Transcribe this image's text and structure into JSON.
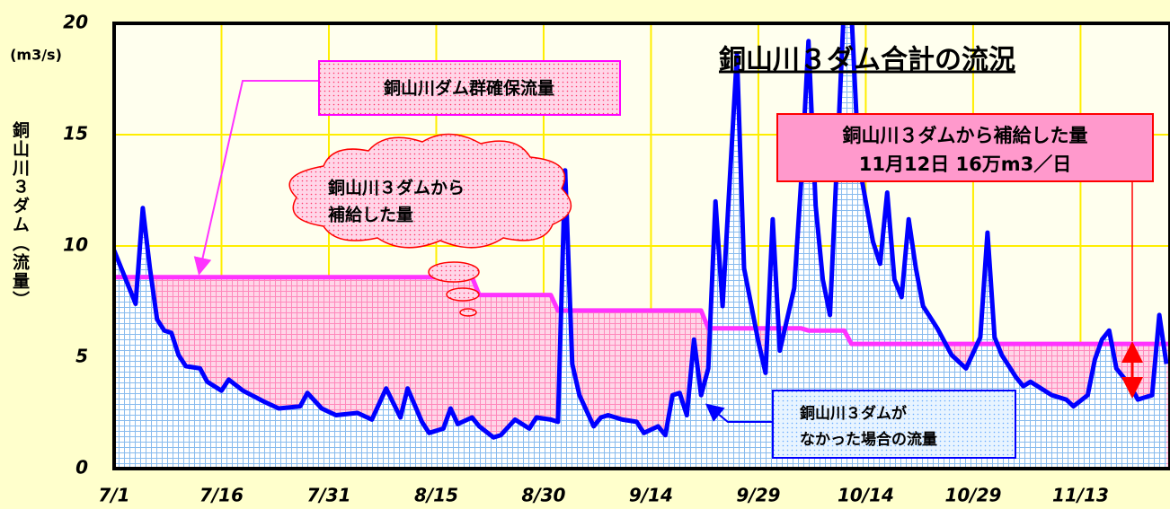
{
  "chart_data": {
    "type": "line",
    "title": "銅山川３ダム合計の流況",
    "y_unit": "(m3/s)",
    "y_label": "銅山川３ダム（流量）",
    "xlim": [
      0,
      147.5
    ],
    "xticks": [
      {
        "value": 0,
        "label": "7/1"
      },
      {
        "value": 15,
        "label": "7/16"
      },
      {
        "value": 30,
        "label": "7/31"
      },
      {
        "value": 45,
        "label": "8/15"
      },
      {
        "value": 60,
        "label": "8/30"
      },
      {
        "value": 75,
        "label": "9/14"
      },
      {
        "value": 90,
        "label": "9/29"
      },
      {
        "value": 105,
        "label": "10/14"
      },
      {
        "value": 120,
        "label": "10/29"
      },
      {
        "value": 135,
        "label": "11/13"
      }
    ],
    "ylim": [
      0,
      20
    ],
    "yticks": [
      0,
      5,
      10,
      15,
      20
    ],
    "grid": true,
    "series": [
      {
        "name": "銅山川ダム群確保流量",
        "color": "#ff33ff",
        "fill": "#ff99cc",
        "x": [
          0,
          50,
          51,
          61,
          62,
          82,
          83,
          96,
          97,
          102,
          103,
          147.5
        ],
        "values": [
          8.6,
          8.6,
          7.8,
          7.8,
          7.1,
          7.1,
          6.3,
          6.3,
          6.2,
          6.2,
          5.6,
          5.6
        ]
      },
      {
        "color": "#0000ff",
        "fill": "#99ccff",
        "x": [
          0,
          2,
          3,
          4,
          5,
          6,
          7,
          8,
          9,
          10,
          12,
          13,
          15,
          16,
          18,
          21,
          23,
          26,
          27,
          29,
          31,
          34,
          36,
          38,
          40,
          41,
          43,
          44,
          46,
          47,
          48,
          50,
          51,
          53,
          54,
          56,
          58,
          59,
          61,
          62,
          63,
          64,
          65,
          67,
          68,
          69,
          71,
          73,
          74,
          76,
          77,
          78,
          79,
          80,
          81,
          82,
          83,
          84,
          85,
          87,
          88,
          90,
          91,
          92,
          93,
          95,
          96,
          97,
          98,
          99,
          100,
          102,
          103,
          104,
          106,
          107,
          108,
          109,
          110,
          111,
          112,
          113,
          115,
          117,
          119,
          121,
          122,
          123,
          124,
          126,
          127,
          128,
          130,
          131,
          133,
          134,
          136,
          137,
          138,
          139,
          140,
          142,
          143,
          145,
          146,
          147
        ],
        "values": [
          9.8,
          8.2,
          7.4,
          11.7,
          9.0,
          6.7,
          6.2,
          6.1,
          5.1,
          4.6,
          4.5,
          3.9,
          3.5,
          4.0,
          3.5,
          3.0,
          2.7,
          2.8,
          3.4,
          2.7,
          2.4,
          2.5,
          2.2,
          3.6,
          2.3,
          3.6,
          2.1,
          1.6,
          1.8,
          2.7,
          2.0,
          2.3,
          1.9,
          1.4,
          1.5,
          2.2,
          1.8,
          2.3,
          2.2,
          2.1,
          13.4,
          4.7,
          3.3,
          1.9,
          2.3,
          2.4,
          2.2,
          2.1,
          1.6,
          1.9,
          1.5,
          3.3,
          3.4,
          2.4,
          5.8,
          3.3,
          4.5,
          12.0,
          7.3,
          18.6,
          9.0,
          5.7,
          4.3,
          11.2,
          5.3,
          8.1,
          13.0,
          19.2,
          11.8,
          8.5,
          6.9,
          21.0,
          20.5,
          13.8,
          10.2,
          9.2,
          12.4,
          8.5,
          7.7,
          11.2,
          9.0,
          7.3,
          6.3,
          5.1,
          4.5,
          5.9,
          10.6,
          5.9,
          5.1,
          4.1,
          3.7,
          3.9,
          3.5,
          3.3,
          3.1,
          2.8,
          3.3,
          4.9,
          5.8,
          6.2,
          4.5,
          3.7,
          3.1,
          3.3,
          6.9,
          4.7
        ]
      }
    ],
    "annotations": [
      {
        "lines": [
          "銅山川３ダムから",
          "補給した量"
        ]
      },
      {
        "lines": [
          "銅山川３ダムから補給した量",
          "11月12日 16万m3／日"
        ]
      },
      {
        "lines": [
          "銅山川３ダムが",
          "なかった場合の流量"
        ]
      }
    ]
  }
}
